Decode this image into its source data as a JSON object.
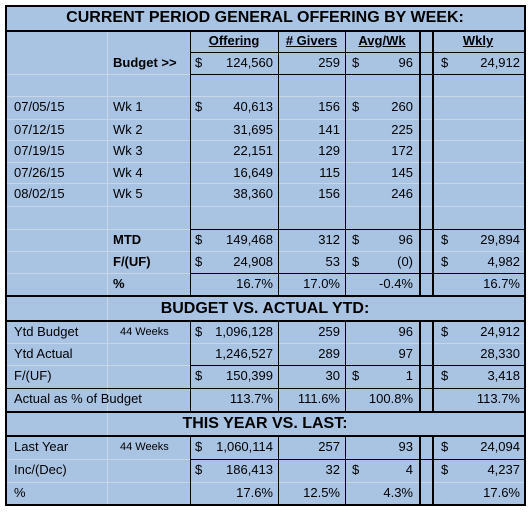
{
  "title": "CURRENT PERIOD GENERAL OFFERING BY WEEK:",
  "headers": {
    "offering": "Offering",
    "givers": "# Givers",
    "avg": "Avg/Wk",
    "wkly": "Wkly"
  },
  "current_rows": [
    {
      "heading": "Budget >>",
      "offering_sign": "$",
      "offering": "124,560",
      "givers": "259",
      "avg_sign": "$",
      "avg": "96",
      "wkly_sign": "$",
      "wkly": "24,912"
    },
    {
      "date": "07/05/15",
      "week": "Wk 1",
      "offering_sign": "$",
      "offering": "40,613",
      "givers": "156",
      "avg_sign": "$",
      "avg": "260"
    },
    {
      "date": "07/12/15",
      "week": "Wk 2",
      "offering": "31,695",
      "givers": "141",
      "avg": "225"
    },
    {
      "date": "07/19/15",
      "week": "Wk 3",
      "offering": "22,151",
      "givers": "129",
      "avg": "172"
    },
    {
      "date": "07/26/15",
      "week": "Wk 4",
      "offering": "16,649",
      "givers": "115",
      "avg": "145"
    },
    {
      "date": "08/02/15",
      "week": "Wk 5",
      "offering": "38,360",
      "givers": "156",
      "avg": "246"
    },
    {
      "heading": "MTD",
      "offering_sign": "$",
      "offering": "149,468",
      "givers": "312",
      "avg_sign": "$",
      "avg": "96",
      "wkly_sign": "$",
      "wkly": "29,894"
    },
    {
      "heading": "F/(UF)",
      "offering_sign": "$",
      "offering": "24,908",
      "givers": "53",
      "avg_sign": "$",
      "avg": "(0)",
      "wkly_sign": "$",
      "wkly": "4,982"
    },
    {
      "heading": "%",
      "offering": "16.7%",
      "givers": "17.0%",
      "avg": "-0.4%",
      "wkly": "16.7%"
    }
  ],
  "ytd": {
    "title": "BUDGET VS. ACTUAL YTD:",
    "rows": [
      {
        "label": "Ytd Budget",
        "sublabel": "44 Weeks",
        "offering_sign": "$",
        "offering": "1,096,128",
        "givers": "259",
        "avg": "96",
        "wkly_sign": "$",
        "wkly": "24,912"
      },
      {
        "label": "Ytd Actual",
        "offering": "1,246,527",
        "givers": "289",
        "avg": "97",
        "wkly": "28,330"
      },
      {
        "label": "F/(UF)",
        "offering_sign": "$",
        "offering": "150,399",
        "givers": "30",
        "avg_sign": "$",
        "avg": "1",
        "wkly_sign": "$",
        "wkly": "3,418"
      },
      {
        "label": "Actual as % of Budget",
        "offering": "113.7%",
        "givers": "111.6%",
        "avg": "100.8%",
        "wkly": "113.7%"
      }
    ]
  },
  "last": {
    "title": "THIS YEAR VS. LAST:",
    "rows": [
      {
        "label": "Last Year",
        "sublabel": "44 Weeks",
        "offering_sign": "$",
        "offering": "1,060,114",
        "givers": "257",
        "avg": "93",
        "wkly_sign": "$",
        "wkly": "24,094"
      },
      {
        "label": "Inc/(Dec)",
        "offering_sign": "$",
        "offering": "186,413",
        "givers": "32",
        "avg_sign": "$",
        "avg": "4",
        "wkly_sign": "$",
        "wkly": "4,237"
      },
      {
        "label": "%",
        "offering": "17.6%",
        "givers": "12.5%",
        "avg": "4.3%",
        "wkly": "17.6%"
      }
    ]
  }
}
